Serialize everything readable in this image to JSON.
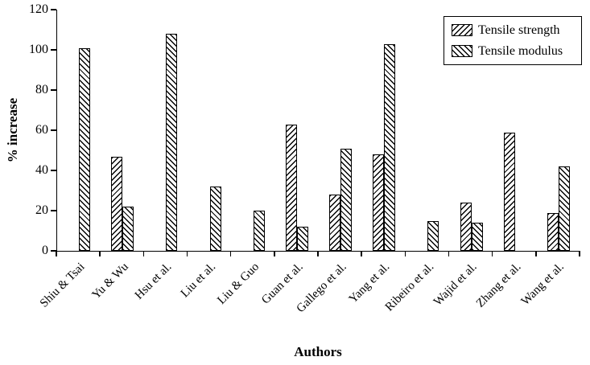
{
  "chart_data": {
    "type": "bar",
    "title": "",
    "xlabel": "Authors",
    "ylabel": "% increase",
    "categories": [
      "Shiu & Tsai",
      "Yu & Wu",
      "Hsu et al.",
      "Liu et al.",
      "Liu & Guo",
      "Guan et al.",
      "Gallego et al.",
      "Yang et al.",
      "Ribeiro et al.",
      "Wajid et al.",
      "Zhang et al.",
      "Wang et al."
    ],
    "series": [
      {
        "name": "Tensile strength",
        "hatch": "forward",
        "values": [
          null,
          47,
          null,
          null,
          null,
          63,
          28,
          48,
          null,
          24,
          59,
          19
        ]
      },
      {
        "name": "Tensile modulus",
        "hatch": "backward",
        "values": [
          101,
          22,
          108,
          32,
          20,
          12,
          51,
          103,
          15,
          14,
          null,
          42
        ]
      }
    ],
    "ylim": [
      0,
      120
    ],
    "yticks": [
      0,
      20,
      40,
      60,
      80,
      100,
      120
    ],
    "ytick_step": 20,
    "grid": false,
    "legend_position": "top-right",
    "bar_color": "#ffffff",
    "line_color": "#000000"
  }
}
